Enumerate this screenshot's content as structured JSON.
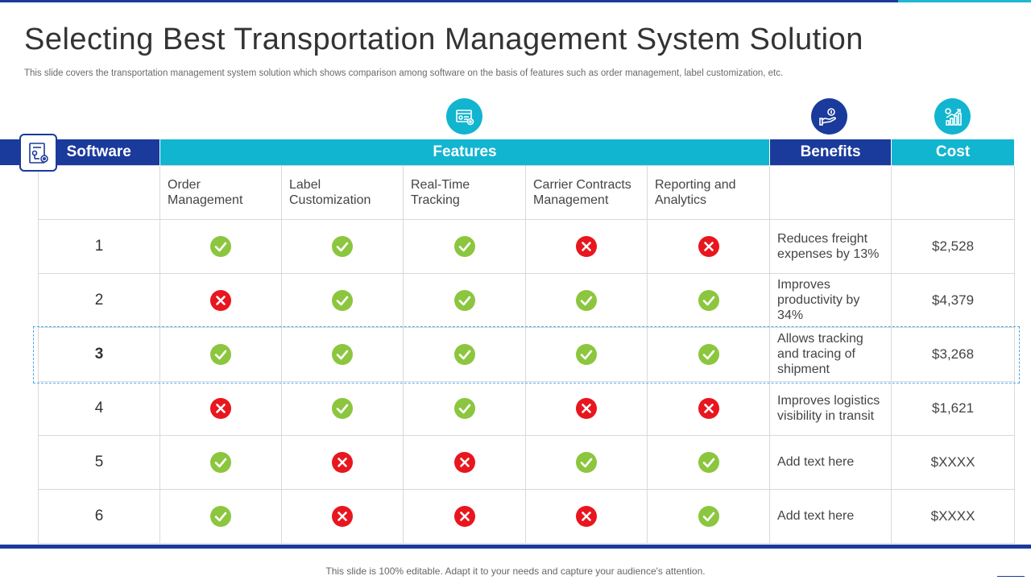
{
  "title": "Selecting Best Transportation Management System Solution",
  "subtitle": "This slide covers the transportation management system solution which shows comparison among software on the basis of features such as order management, label customization, etc.",
  "footer": "This slide is 100% editable. Adapt it to your needs and capture your audience's attention.",
  "colors": {
    "navy": "#1a3a9c",
    "cyan": "#12b5cf",
    "check": "#8cc63f",
    "cross": "#e8161e"
  },
  "icons": {
    "table": "software-network-icon",
    "features": "browser-settings-icon",
    "benefits": "hand-money-icon",
    "cost": "growth-chart-icon"
  },
  "headers": {
    "software": "Software",
    "features": "Features",
    "benefits": "Benefits",
    "cost": "Cost"
  },
  "feature_columns": [
    "Order\nManagement",
    "Label\nCustomization",
    "Real-Time\nTracking",
    "Carrier Contracts\nManagement",
    "Reporting and\nAnalytics"
  ],
  "rows": [
    {
      "num": "1",
      "marks": [
        "check",
        "check",
        "check",
        "cross",
        "cross"
      ],
      "benefit": "Reduces freight expenses by 13%",
      "cost": "$2,528"
    },
    {
      "num": "2",
      "marks": [
        "cross",
        "check",
        "check",
        "check",
        "check"
      ],
      "benefit": "Improves productivity by 34%",
      "cost": "$4,379"
    },
    {
      "num": "3",
      "marks": [
        "check",
        "check",
        "check",
        "check",
        "check"
      ],
      "benefit": "Allows tracking and tracing of shipment",
      "cost": "$3,268"
    },
    {
      "num": "4",
      "marks": [
        "cross",
        "check",
        "check",
        "cross",
        "cross"
      ],
      "benefit": "Improves logistics visibility in transit",
      "cost": "$1,621"
    },
    {
      "num": "5",
      "marks": [
        "check",
        "cross",
        "cross",
        "check",
        "check"
      ],
      "benefit": "Add text here",
      "cost": "$XXXX"
    },
    {
      "num": "6",
      "marks": [
        "check",
        "cross",
        "cross",
        "cross",
        "check"
      ],
      "benefit": "Add text here",
      "cost": "$XXXX"
    }
  ]
}
